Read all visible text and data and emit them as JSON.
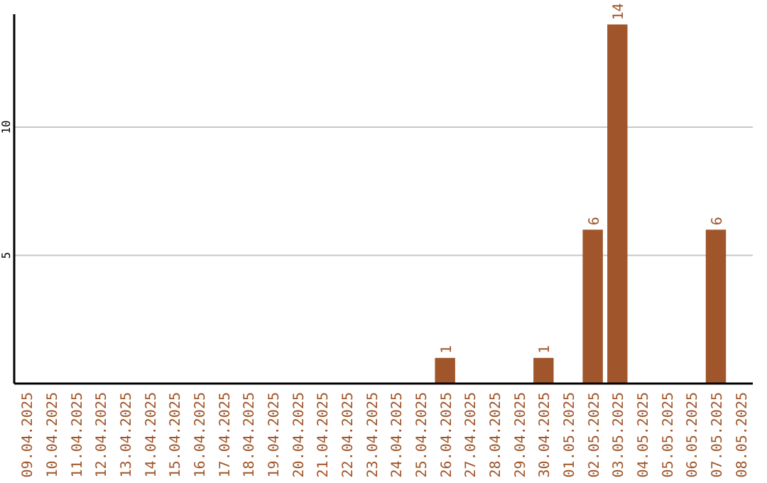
{
  "chart_data": {
    "type": "bar",
    "categories": [
      "09.04.2025",
      "10.04.2025",
      "11.04.2025",
      "12.04.2025",
      "13.04.2025",
      "14.04.2025",
      "15.04.2025",
      "16.04.2025",
      "17.04.2025",
      "18.04.2025",
      "19.04.2025",
      "20.04.2025",
      "21.04.2025",
      "22.04.2025",
      "23.04.2025",
      "24.04.2025",
      "25.04.2025",
      "26.04.2025",
      "27.04.2025",
      "28.04.2025",
      "29.04.2025",
      "30.04.2025",
      "01.05.2025",
      "02.05.2025",
      "03.05.2025",
      "04.05.2025",
      "05.05.2025",
      "06.05.2025",
      "07.05.2025",
      "08.05.2025"
    ],
    "values": [
      0,
      0,
      0,
      0,
      0,
      0,
      0,
      0,
      0,
      0,
      0,
      0,
      0,
      0,
      0,
      0,
      0,
      1,
      0,
      0,
      0,
      1,
      0,
      6,
      14,
      0,
      0,
      0,
      6,
      0
    ],
    "value_labels": [
      null,
      null,
      null,
      null,
      null,
      null,
      null,
      null,
      null,
      null,
      null,
      null,
      null,
      null,
      null,
      null,
      null,
      "1",
      null,
      null,
      null,
      "1",
      null,
      "6",
      "14",
      null,
      null,
      null,
      "6",
      null
    ],
    "color": "#a0562a",
    "ylim": [
      0,
      14.4
    ],
    "yticks": [
      5,
      10
    ],
    "grid": "y"
  }
}
